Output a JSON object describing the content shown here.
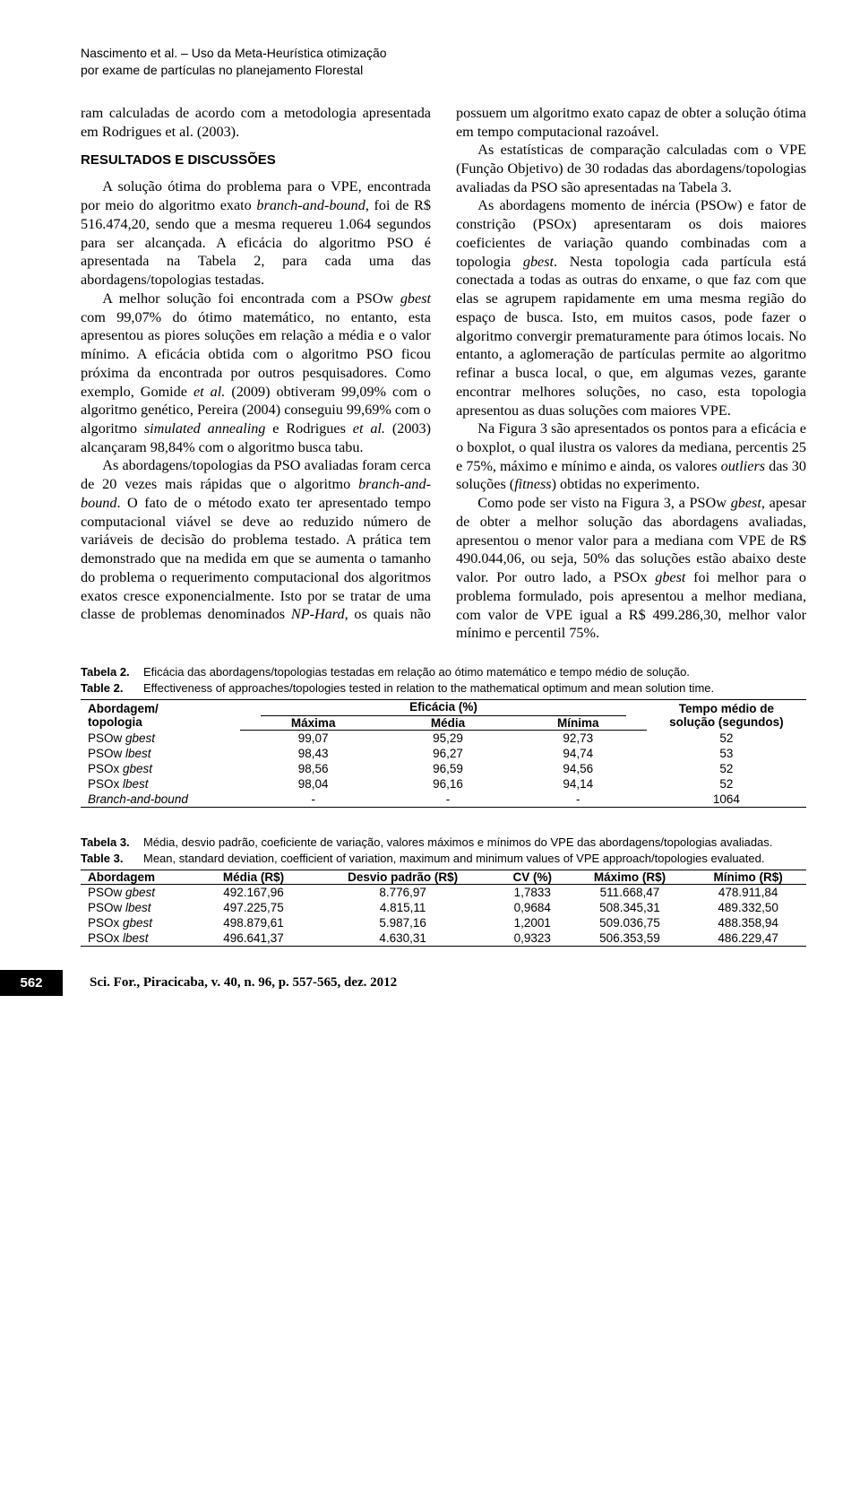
{
  "running_head": {
    "line1": "Nascimento et al. – Uso da Meta-Heurística otimização",
    "line2": "por exame de partículas no planejamento Florestal"
  },
  "body": {
    "p1": "ram calculadas de acordo com a metodologia apresentada em Rodrigues et al. (2003).",
    "section_head": "RESULTADOS E DISCUSSÕES",
    "p2": "A solução ótima do problema para o VPE, encontrada por meio do algoritmo exato branch-and-bound, foi de R$ 516.474,20, sendo que a mesma requereu 1.064 segundos para ser alcançada. A eficácia do algoritmo PSO é apresentada na Tabela 2, para cada uma das abordagens/topologias testadas.",
    "p3": "A melhor solução foi encontrada com a PSOw gbest com 99,07% do ótimo matemático, no entanto, esta apresentou as piores soluções em relação a média e o valor mínimo. A eficácia obtida com o algoritmo PSO ficou próxima da encontrada por outros pesquisadores. Como exemplo, Gomide et al. (2009) obtiveram 99,09% com o algoritmo genético, Pereira (2004) conseguiu 99,69% com o algoritmo simulated annealing e Rodrigues et al. (2003) alcançaram 98,84% com o algoritmo busca tabu.",
    "p4": "As abordagens/topologias da PSO avaliadas foram cerca de 20 vezes mais rápidas que o algoritmo branch-and-bound. O fato de o método exato ter apresentado tempo computacional viável se deve ao reduzido número de variáveis de decisão do problema testado. A prática tem demonstrado que na medida em que se aumenta o tamanho do problema o requerimento computacional dos algoritmos exatos cresce exponencialmente. Isto por se tratar de uma classe de problemas denominados NP-Hard, os quais não possuem um algoritmo exato capaz de obter a solução ótima em tempo computacional razoável.",
    "p5": "As estatísticas de comparação calculadas com o VPE (Função Objetivo) de 30 rodadas das abordagens/topologias avaliadas da PSO são apresentadas na Tabela 3.",
    "p6": "As abordagens momento de inércia (PSOw) e fator de constrição (PSOx) apresentaram os dois maiores coeficientes de variação quando combinadas com a topologia gbest. Nesta topologia cada partícula está conectada a todas as outras do enxame, o que faz com que elas se agrupem rapidamente em uma mesma região do espaço de busca. Isto, em muitos casos, pode fazer o algoritmo convergir prematuramente para ótimos locais. No entanto, a aglomeração de partículas permite ao algoritmo refinar a busca local, o que, em algumas vezes, garante encontrar melhores soluções, no caso, esta topologia apresentou as duas soluções com maiores VPE.",
    "p7": "Na Figura 3 são apresentados os pontos para a eficácia e o boxplot, o qual ilustra os valores da mediana, percentis 25 e 75%, máximo e mínimo e ainda, os valores outliers das 30 soluções (fitness) obtidas no experimento.",
    "p8": "Como pode ser visto na Figura 3, a PSOw gbest, apesar de obter a melhor solução das abordagens avaliadas, apresentou o menor valor para a mediana com VPE de R$ 490.044,06, ou seja, 50% das soluções estão abaixo deste valor. Por outro lado, a PSOx gbest foi melhor para o problema formulado, pois apresentou a melhor mediana, com valor de VPE igual a R$ 499.286,30, melhor valor mínimo e percentil 75%."
  },
  "table2": {
    "caption_pt_label": "Tabela 2.",
    "caption_pt": "Eficácia das abordagens/topologias testadas em relação ao ótimo matemático e tempo médio de solução.",
    "caption_en_label": "Table 2.",
    "caption_en": "Effectiveness of approaches/topologies tested in relation to the mathematical optimum and mean solution time.",
    "header": {
      "c1a": "Abordagem/",
      "c1b": "topologia",
      "span": "Eficácia (%)",
      "c2": "Máxima",
      "c3": "Média",
      "c4": "Mínima",
      "c5a": "Tempo médio de",
      "c5b": "solução (segundos)"
    },
    "rows": [
      {
        "c1a": "PSOw ",
        "c1b": "gbest",
        "c2": "99,07",
        "c3": "95,29",
        "c4": "92,73",
        "c5": "52"
      },
      {
        "c1a": "PSOw ",
        "c1b": "lbest",
        "c2": "98,43",
        "c3": "96,27",
        "c4": "94,74",
        "c5": "53"
      },
      {
        "c1a": "PSOx ",
        "c1b": "gbest",
        "c2": "98,56",
        "c3": "96,59",
        "c4": "94,56",
        "c5": "52"
      },
      {
        "c1a": "PSOx ",
        "c1b": "lbest",
        "c2": "98,04",
        "c3": "96,16",
        "c4": "94,14",
        "c5": "52"
      },
      {
        "c1a": "Branch-and-bound",
        "c1b": "",
        "c2": "-",
        "c3": "-",
        "c4": "-",
        "c5": "1064"
      }
    ]
  },
  "table3": {
    "caption_pt_label": "Tabela 3.",
    "caption_pt": "Média, desvio padrão, coeficiente de variação, valores máximos e mínimos do VPE das abordagens/topologias avaliadas.",
    "caption_en_label": "Table 3.",
    "caption_en": "Mean, standard deviation, coefficient of variation, maximum and minimum values of VPE approach/topologies evaluated.",
    "header": {
      "c1": "Abordagem",
      "c2": "Média (R$)",
      "c3": "Desvio padrão (R$)",
      "c4": "CV (%)",
      "c5": "Máximo (R$)",
      "c6": "Mínimo (R$)"
    },
    "rows": [
      {
        "c1a": "PSOw ",
        "c1b": "gbest",
        "c2": "492.167,96",
        "c3": "8.776,97",
        "c4": "1,7833",
        "c5": "511.668,47",
        "c6": "478.911,84"
      },
      {
        "c1a": "PSOw ",
        "c1b": "lbest",
        "c2": "497.225,75",
        "c3": "4.815,11",
        "c4": "0,9684",
        "c5": "508.345,31",
        "c6": "489.332,50"
      },
      {
        "c1a": "PSOx ",
        "c1b": "gbest",
        "c2": "498.879,61",
        "c3": "5.987,16",
        "c4": "1,2001",
        "c5": "509.036,75",
        "c6": "488.358,94"
      },
      {
        "c1a": "PSOx ",
        "c1b": "lbest",
        "c2": "496.641,37",
        "c3": "4.630,31",
        "c4": "0,9323",
        "c5": "506.353,59",
        "c6": "486.229,47"
      }
    ]
  },
  "footer": {
    "page": "562",
    "ref": "Sci. For., Piracicaba, v. 40, n. 96, p. 557-565, dez. 2012"
  }
}
